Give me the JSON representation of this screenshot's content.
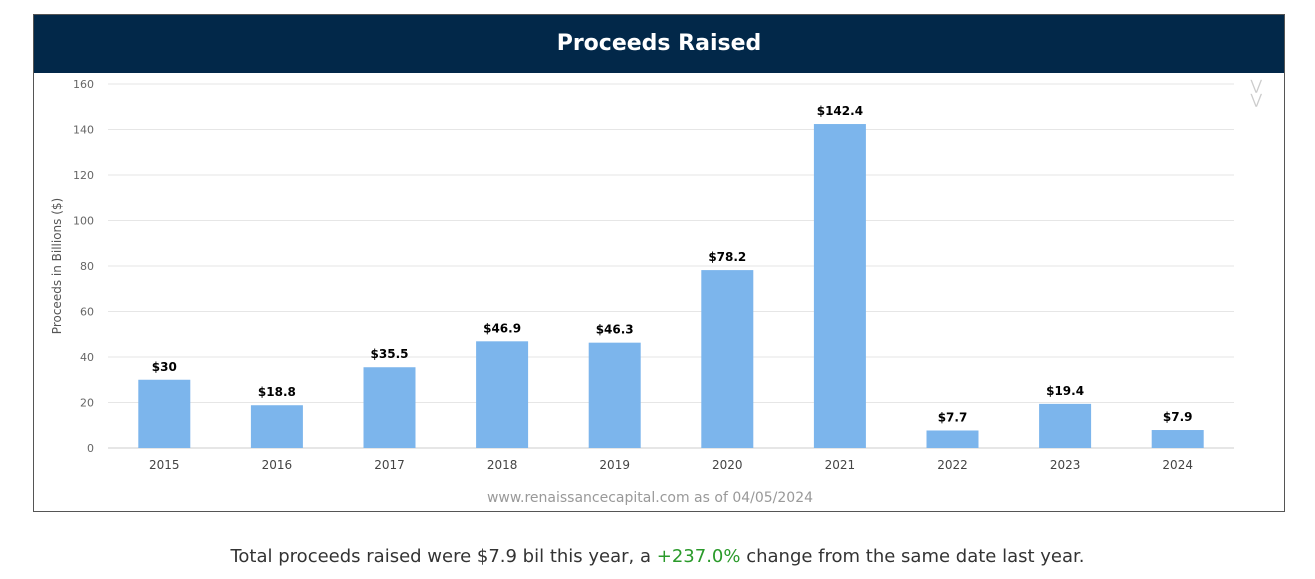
{
  "header": {
    "title": "Proceeds Raised"
  },
  "chevron_icon": "double-chevron-down-icon",
  "chart_data": {
    "type": "bar",
    "title": "Proceeds Raised",
    "ylabel": "Proceeds in Billions ($)",
    "xlabel": "",
    "ylim": [
      0,
      160
    ],
    "yticks": [
      0,
      20,
      40,
      60,
      80,
      100,
      120,
      140,
      160
    ],
    "grid": true,
    "bar_color": "#7cb5ec",
    "categories": [
      "2015",
      "2016",
      "2017",
      "2018",
      "2019",
      "2020",
      "2021",
      "2022",
      "2023",
      "2024"
    ],
    "values": [
      30,
      18.8,
      35.5,
      46.9,
      46.3,
      78.2,
      142.4,
      7.7,
      19.4,
      7.9
    ],
    "data_labels": [
      "$30",
      "$18.8",
      "$35.5",
      "$46.9",
      "$46.3",
      "$78.2",
      "$142.4",
      "$7.7",
      "$19.4",
      "$7.9"
    ],
    "credit": "www.renaissancecapital.com as of 04/05/2024"
  },
  "summary": {
    "prefix": "Total proceeds raised were $7.9 bil this year, a ",
    "change": "+237.0%",
    "suffix": " change from the same date last year.",
    "change_color": "#2a9a2a"
  }
}
